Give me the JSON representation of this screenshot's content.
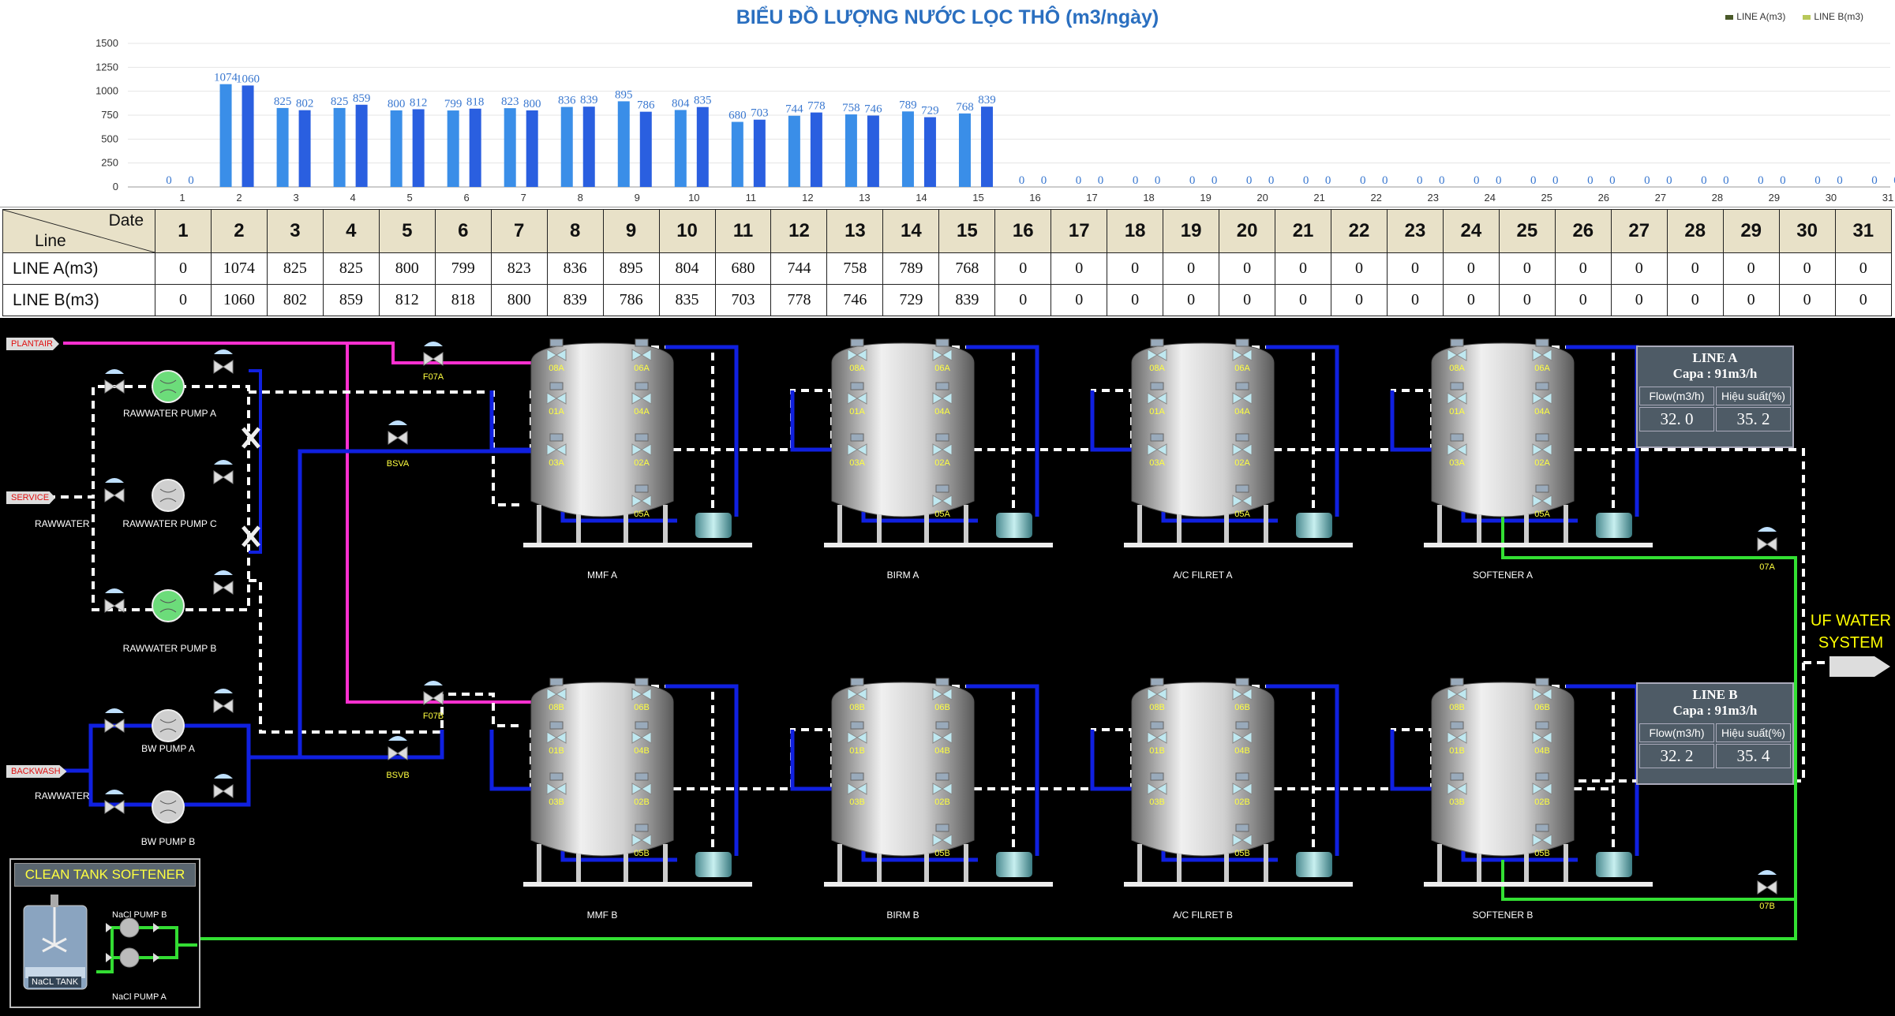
{
  "chart_data": {
    "type": "bar",
    "title": "BIỂU ĐỒ LƯỢNG NƯỚC LỌC THÔ (m3/ngày)",
    "categories": [
      "1",
      "2",
      "3",
      "4",
      "5",
      "6",
      "7",
      "8",
      "9",
      "10",
      "11",
      "12",
      "13",
      "14",
      "15",
      "16",
      "17",
      "18",
      "19",
      "20",
      "21",
      "22",
      "23",
      "24",
      "25",
      "26",
      "27",
      "28",
      "29",
      "30",
      "31"
    ],
    "series": [
      {
        "name": "LINE A(m3)",
        "color": "#3a8ee8",
        "values": [
          0,
          1074,
          825,
          825,
          800,
          799,
          823,
          836,
          895,
          804,
          680,
          744,
          758,
          789,
          768,
          0,
          0,
          0,
          0,
          0,
          0,
          0,
          0,
          0,
          0,
          0,
          0,
          0,
          0,
          0,
          0
        ]
      },
      {
        "name": "LINE B(m3)",
        "color": "#2a5fe0",
        "values": [
          0,
          1060,
          802,
          859,
          812,
          818,
          800,
          839,
          786,
          835,
          703,
          778,
          746,
          729,
          839,
          0,
          0,
          0,
          0,
          0,
          0,
          0,
          0,
          0,
          0,
          0,
          0,
          0,
          0,
          0,
          0
        ]
      }
    ],
    "ylim": [
      0,
      1500
    ],
    "yticks": [
      "0",
      "250",
      "500",
      "750",
      "1000",
      "1250",
      "1500"
    ],
    "grid": true,
    "legend": "top-right"
  },
  "legend_items": [
    {
      "label": "LINE A(m3)",
      "color": "#4a5a2a"
    },
    {
      "label": "LINE B(m3)",
      "color": "#b8c85a"
    }
  ],
  "table": {
    "header_date": "Date",
    "header_line": "Line",
    "row_a_label": "LINE A(m3)",
    "row_b_label": "LINE B(m3)"
  },
  "tags": {
    "plantair": "PLANTAIR",
    "service": "SERVICE",
    "backwash": "BACKWASH",
    "rawwater1": "RAWWATER",
    "rawwater2": "RAWWATER"
  },
  "pumps": {
    "pump_a": "RAWWATER PUMP A",
    "pump_c": "RAWWATER PUMP C",
    "pump_b": "RAWWATER PUMP B",
    "bw_a": "BW PUMP A",
    "bw_b": "BW PUMP B"
  },
  "valves": {
    "f07a": "F07A",
    "f07b": "F07B",
    "bsva": "BSVA",
    "bsvb": "BSVB",
    "v07a": "07A",
    "v07b": "07B"
  },
  "tanks_a": [
    "MMF A",
    "BIRM A",
    "A/C FILRET A",
    "SOFTENER A"
  ],
  "tanks_b": [
    "MMF B",
    "BIRM B",
    "A/C FILRET B",
    "SOFTENER B"
  ],
  "tank_valves_a": [
    "08A",
    "06A",
    "01A",
    "04A",
    "03A",
    "02A",
    "05A"
  ],
  "tank_valves_b": [
    "08B",
    "06B",
    "01B",
    "04B",
    "03B",
    "02B",
    "05B"
  ],
  "panel_a": {
    "title": "LINE A",
    "capa": "Capa : 91m3/h",
    "flow_label": "Flow(m3/h)",
    "eff_label": "Hiệu suất(%)",
    "flow": "32. 0",
    "eff": "35. 2"
  },
  "panel_b": {
    "title": "LINE B",
    "capa": "Capa : 91m3/h",
    "flow_label": "Flow(m3/h)",
    "eff_label": "Hiệu suất(%)",
    "flow": "32. 2",
    "eff": "35. 4"
  },
  "uf_label_1": "UF WATER",
  "uf_label_2": "SYSTEM",
  "clean_tank": {
    "title": "CLEAN TANK SOFTENER",
    "tank_label": "NaCL TANK",
    "pump_b": "NaCl PUMP B",
    "pump_a": "NaCl PUMP A"
  }
}
